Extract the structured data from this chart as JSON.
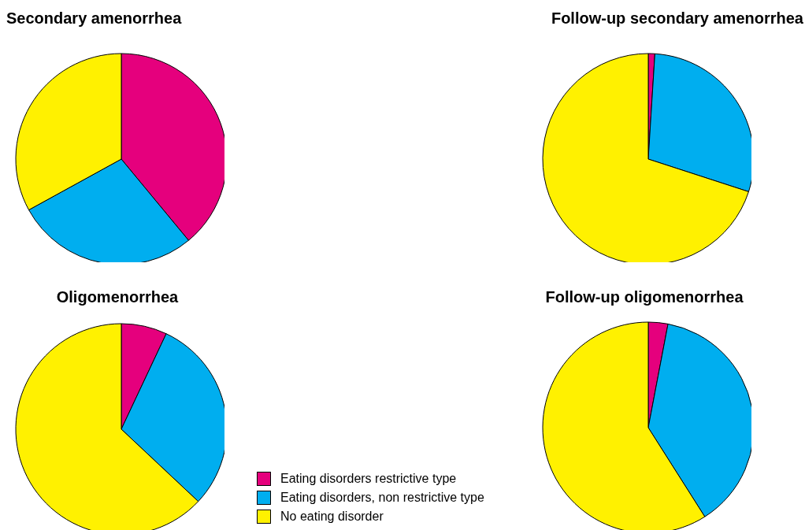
{
  "chart_data": [
    {
      "type": "pie",
      "title": "Secondary amenorrhea",
      "categories": [
        "Eating disorders restrictive type",
        "Eating disorders, non restrictive type",
        "No eating disorder"
      ],
      "values": [
        39,
        28,
        33
      ],
      "colors": [
        "#e5007d",
        "#00aeef",
        "#fff100"
      ],
      "legend": "bottom"
    },
    {
      "type": "pie",
      "title": "Follow-up secondary amenorrhea",
      "categories": [
        null,
        null,
        null
      ],
      "values": [
        1,
        29,
        70
      ],
      "colors": [
        "#e5007d",
        "#00aeef",
        "#fff100"
      ]
    },
    {
      "type": "pie",
      "title": "Oligomenorrhea",
      "categories": [
        null,
        null,
        null
      ],
      "values": [
        7,
        30,
        63
      ],
      "colors": [
        "#e5007d",
        "#00aeef",
        "#fff100"
      ]
    },
    {
      "type": "pie",
      "title": "Follow-up oligomenorrhea",
      "categories": [
        null,
        null,
        null
      ],
      "values": [
        3,
        38,
        59
      ],
      "colors": [
        "#e5007d",
        "#00aeef",
        "#fff100"
      ]
    }
  ]
}
